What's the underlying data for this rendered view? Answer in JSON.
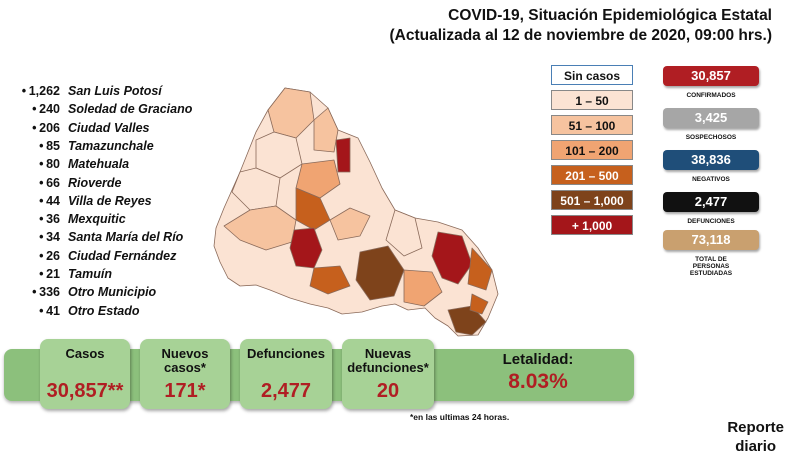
{
  "title": {
    "line1": "COVID-19, Situación Epidemiológica Estatal",
    "line2": "(Actualizada al 12 de noviembre de 2020, 09:00 hrs.)"
  },
  "municipalities": [
    {
      "count": "1,262",
      "name": "San Luis Potosí"
    },
    {
      "count": "240",
      "name": "Soledad de Graciano"
    },
    {
      "count": "206",
      "name": "Ciudad Valles"
    },
    {
      "count": "85",
      "name": "Tamazunchale"
    },
    {
      "count": "80",
      "name": "Matehuala"
    },
    {
      "count": "66",
      "name": "Rioverde"
    },
    {
      "count": "44",
      "name": "Villa de Reyes"
    },
    {
      "count": "36",
      "name": "Mexquitic"
    },
    {
      "count": "34",
      "name": "Santa María del Río"
    },
    {
      "count": "26",
      "name": "Ciudad Fernández"
    },
    {
      "count": "21",
      "name": "Tamuín"
    },
    {
      "count": "336",
      "name": "Otro Municipio"
    },
    {
      "count": "41",
      "name": "Otro Estado"
    }
  ],
  "legend": [
    {
      "label": "Sin casos",
      "color": "#ffffff",
      "text_color": "#111111"
    },
    {
      "label": "1 – 50",
      "color": "#fbe3d3",
      "text_color": "#111111"
    },
    {
      "label": "51 – 100",
      "color": "#f6c39f",
      "text_color": "#111111"
    },
    {
      "label": "101 – 200",
      "color": "#f0a472",
      "text_color": "#111111"
    },
    {
      "label": "201 – 500",
      "color": "#c6601d",
      "text_color": "#ffffff"
    },
    {
      "label": "501 – 1,000",
      "color": "#7e431b",
      "text_color": "#ffffff"
    },
    {
      "label": "+ 1,000",
      "color": "#a4161a",
      "text_color": "#ffffff"
    }
  ],
  "stats": [
    {
      "value": "30,857",
      "label": "CONFIRMADOS",
      "color": "#b01e23"
    },
    {
      "value": "3,425",
      "label": "SOSPECHOSOS",
      "color": "#a6a6a6"
    },
    {
      "value": "38,836",
      "label": "NEGATIVOS",
      "color": "#1f4e79"
    },
    {
      "value": "2,477",
      "label": "DEFUNCIONES",
      "color": "#111111"
    },
    {
      "value": "73,118",
      "label": "TOTAL DE PERSONAS ESTUDIADAS",
      "color": "#c9a06f"
    }
  ],
  "summary": {
    "casos_label": "Casos",
    "casos_value": "30,857**",
    "nuevos_casos_label": "Nuevos casos*",
    "nuevos_casos_value": "171*",
    "defunciones_label": "Defunciones",
    "defunciones_value": "2,477",
    "nuevas_defunciones_label": "Nuevas defunciones*",
    "nuevas_defunciones_value": "20",
    "letalidad_label": "Letalidad:",
    "letalidad_value": "8.03%"
  },
  "footnote": "*en las ultimas 24 horas.",
  "report": {
    "line1": "Reporte",
    "line2": "diario"
  },
  "colors": {
    "accent_red": "#b01e23",
    "band_green": "#8cc07c",
    "card_green": "#a7d296"
  }
}
